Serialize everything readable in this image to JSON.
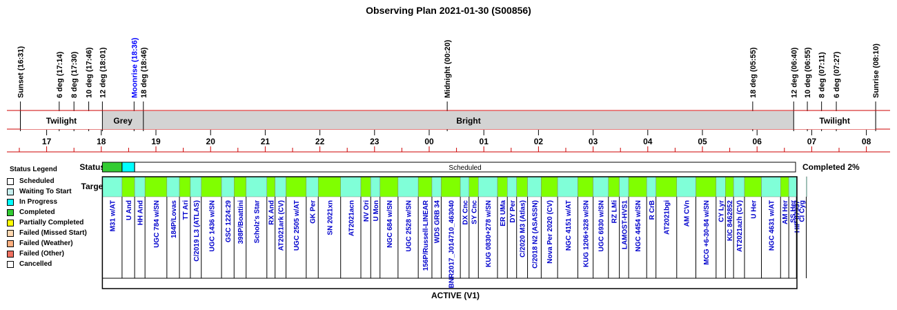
{
  "chart_data": {
    "type": "observing-plan",
    "title": "Observing Plan 2021-01-30 (S00856)",
    "axis_hours": [
      "17",
      "18",
      "19",
      "20",
      "21",
      "22",
      "23",
      "00",
      "01",
      "02",
      "03",
      "04",
      "05",
      "06",
      "07",
      "08"
    ],
    "time_markers": [
      {
        "label": "Sunset (16:31)",
        "t": -7.48,
        "color": "#000000"
      },
      {
        "label": "6 deg (17:14)",
        "t": -6.77,
        "color": "#000000"
      },
      {
        "label": "8 deg (17:30)",
        "t": -6.5,
        "color": "#000000"
      },
      {
        "label": "10 deg (17:46)",
        "t": -6.23,
        "color": "#000000"
      },
      {
        "label": "12 deg (18:01)",
        "t": -5.98,
        "color": "#000000"
      },
      {
        "label": "Moonrise (18:36)",
        "t": -5.4,
        "color": "#0000ff"
      },
      {
        "label": "18 deg (18:46)",
        "t": -5.23,
        "color": "#000000"
      },
      {
        "label": "Midnight (00:20)",
        "t": 0.33,
        "color": "#000000"
      },
      {
        "label": "18 deg (05:55)",
        "t": 5.92,
        "color": "#000000"
      },
      {
        "label": "12 deg (06:40)",
        "t": 6.67,
        "color": "#000000"
      },
      {
        "label": "10 deg (06:55)",
        "t": 6.92,
        "color": "#000000"
      },
      {
        "label": "8 deg (07:11)",
        "t": 7.18,
        "color": "#000000"
      },
      {
        "label": "6 deg (07:27)",
        "t": 7.45,
        "color": "#000000"
      },
      {
        "label": "Sunrise (08:10)",
        "t": 8.17,
        "color": "#000000"
      }
    ],
    "bands": [
      {
        "label": "Twilight",
        "from": -7.48,
        "to": -5.98,
        "fill": "#ffffff"
      },
      {
        "label": "Grey",
        "from": -5.98,
        "to": -5.23,
        "fill": "#d3d3d3"
      },
      {
        "label": "Bright",
        "from": -5.23,
        "to": 6.67,
        "fill": "#d3d3d3"
      },
      {
        "label": "Twilight",
        "from": 6.67,
        "to": 8.17,
        "fill": "#ffffff"
      }
    ],
    "status_label": "Status",
    "targets_label": "Targets",
    "status_segments": [
      {
        "status": "Completed",
        "from": -5.98,
        "to": -5.62
      },
      {
        "status": "In Progress",
        "from": -5.62,
        "to": -5.39
      },
      {
        "status": "Scheduled",
        "from": -5.39,
        "to": 6.67,
        "text": "Scheduled"
      }
    ],
    "completed_text": "Completed 2%",
    "footer": "ACTIVE (V1)",
    "targets": [
      {
        "name": "M31 w/AT",
        "from": -5.98,
        "to": -5.62,
        "status": "Completed"
      },
      {
        "name": "U And",
        "from": -5.62,
        "to": -5.39,
        "status": "In Progress"
      },
      {
        "name": "HH And",
        "from": -5.39,
        "to": -5.2,
        "status": "Scheduled"
      },
      {
        "name": "UGC 784 w/SN",
        "from": -5.2,
        "to": -4.8,
        "status": "Scheduled"
      },
      {
        "name": "184P/Lovas",
        "from": -4.8,
        "to": -4.57,
        "status": "Scheduled"
      },
      {
        "name": "TT Ari",
        "from": -4.57,
        "to": -4.37,
        "status": "Scheduled"
      },
      {
        "name": "C/2019 L3 (ATLAS)",
        "from": -4.37,
        "to": -4.17,
        "status": "Scheduled"
      },
      {
        "name": "UGC 1436 w/SN",
        "from": -4.17,
        "to": -3.8,
        "status": "Scheduled"
      },
      {
        "name": "GSC 1224:29",
        "from": -3.8,
        "to": -3.57,
        "status": "Scheduled"
      },
      {
        "name": "398P/Boattini",
        "from": -3.57,
        "to": -3.35,
        "status": "Scheduled"
      },
      {
        "name": "Scholz's Star",
        "from": -3.35,
        "to": -2.97,
        "status": "Scheduled"
      },
      {
        "name": "RX And",
        "from": -2.97,
        "to": -2.82,
        "status": "Scheduled"
      },
      {
        "name": "AT2021ark (CV)",
        "from": -2.82,
        "to": -2.62,
        "status": "Scheduled"
      },
      {
        "name": "UGC 2505 w/AT",
        "from": -2.62,
        "to": -2.25,
        "status": "Scheduled"
      },
      {
        "name": "GK Per",
        "from": -2.25,
        "to": -2.03,
        "status": "Scheduled"
      },
      {
        "name": "SN 2021xn",
        "from": -2.03,
        "to": -1.62,
        "status": "Scheduled"
      },
      {
        "name": "AT2021acn",
        "from": -1.62,
        "to": -1.25,
        "status": "Scheduled"
      },
      {
        "name": "NV Ori",
        "from": -1.25,
        "to": -1.07,
        "status": "Scheduled"
      },
      {
        "name": "U Mon",
        "from": -1.07,
        "to": -0.9,
        "status": "Scheduled"
      },
      {
        "name": "NGC 684 w/SN",
        "from": -0.9,
        "to": -0.57,
        "status": "Scheduled"
      },
      {
        "name": "UGC 2528 w/SN",
        "from": -0.57,
        "to": -0.2,
        "status": "Scheduled"
      },
      {
        "name": "156P/Russell-LINEAR",
        "from": -0.2,
        "to": 0.05,
        "status": "Scheduled"
      },
      {
        "name": "WDS GRB 34",
        "from": 0.05,
        "to": 0.22,
        "status": "Scheduled"
      },
      {
        "name": "BNR2017_J014710_463040",
        "from": 0.22,
        "to": 0.57,
        "status": "Scheduled"
      },
      {
        "name": "DX Cnc",
        "from": 0.57,
        "to": 0.73,
        "status": "Scheduled"
      },
      {
        "name": "SY Cnc",
        "from": 0.73,
        "to": 0.9,
        "status": "Scheduled"
      },
      {
        "name": "KUG 0830+278 w/SN",
        "from": 0.9,
        "to": 1.25,
        "status": "Scheduled"
      },
      {
        "name": "ER UMa",
        "from": 1.25,
        "to": 1.43,
        "status": "Scheduled"
      },
      {
        "name": "DY Per",
        "from": 1.43,
        "to": 1.6,
        "status": "Scheduled"
      },
      {
        "name": "C/2020 M3 (Atlas)",
        "from": 1.6,
        "to": 1.8,
        "status": "Scheduled"
      },
      {
        "name": "C/2018 N2 (ASASSN)",
        "from": 1.8,
        "to": 2.05,
        "status": "Scheduled"
      },
      {
        "name": "Nova Per 2020 (CV)",
        "from": 2.05,
        "to": 2.35,
        "status": "Scheduled"
      },
      {
        "name": "NGC 4151 w/AT",
        "from": 2.35,
        "to": 2.72,
        "status": "Scheduled"
      },
      {
        "name": "KUG 1206+328 w/SN",
        "from": 2.72,
        "to": 3.0,
        "status": "Scheduled"
      },
      {
        "name": "UGC 6930 w/SN",
        "from": 3.0,
        "to": 3.28,
        "status": "Scheduled"
      },
      {
        "name": "RZ LMi",
        "from": 3.28,
        "to": 3.48,
        "status": "Scheduled"
      },
      {
        "name": "LAMOST-HVS1",
        "from": 3.48,
        "to": 3.65,
        "status": "Scheduled"
      },
      {
        "name": "NGC 4454 w/SN",
        "from": 3.65,
        "to": 3.98,
        "status": "Scheduled"
      },
      {
        "name": "R CrB",
        "from": 3.98,
        "to": 4.15,
        "status": "Scheduled"
      },
      {
        "name": "AT2021bgi",
        "from": 4.15,
        "to": 4.53,
        "status": "Scheduled"
      },
      {
        "name": "AM CVn",
        "from": 4.53,
        "to": 4.88,
        "status": "Scheduled"
      },
      {
        "name": "MCG +6-30-84 w/SN",
        "from": 4.88,
        "to": 5.25,
        "status": "Scheduled"
      },
      {
        "name": "CY Lyr",
        "from": 5.25,
        "to": 5.42,
        "status": "Scheduled"
      },
      {
        "name": "KIC 8462852",
        "from": 5.42,
        "to": 5.57,
        "status": "Scheduled"
      },
      {
        "name": "AT2021azh (CV)",
        "from": 5.57,
        "to": 5.77,
        "status": "Scheduled"
      },
      {
        "name": "U Her",
        "from": 5.77,
        "to": 6.08,
        "status": "Scheduled"
      },
      {
        "name": "NGC 4631 w/AT",
        "from": 6.08,
        "to": 6.43,
        "status": "Scheduled"
      },
      {
        "name": "AM Her",
        "from": 6.43,
        "to": 6.58,
        "status": "Scheduled"
      },
      {
        "name": "SS Her",
        "from": 6.58,
        "to": 6.72,
        "status": "Scheduled"
      },
      {
        "name": "HIP 87937",
        "from": 6.72,
        "to": 6.9,
        "status": "Scheduled"
      },
      {
        "name": "CI Cyg",
        "from": 6.9,
        "to": 7.02,
        "status": "Scheduled"
      }
    ]
  },
  "legend": {
    "title": "Status Legend",
    "items": [
      {
        "label": "Scheduled",
        "color": "#ffffff"
      },
      {
        "label": "Waiting To Start",
        "color": "#c8f0f0"
      },
      {
        "label": "In Progress",
        "color": "#00ffff"
      },
      {
        "label": "Completed",
        "color": "#33cc33"
      },
      {
        "label": "Partially Completed",
        "color": "#ffff00"
      },
      {
        "label": "Failed (Missed Start)",
        "color": "#ffd8b0"
      },
      {
        "label": "Failed (Weather)",
        "color": "#ffb080"
      },
      {
        "label": "Failed (Other)",
        "color": "#f07060"
      },
      {
        "label": "Cancelled",
        "color": "#ffffff"
      }
    ]
  },
  "colors": {
    "completed": "#33cc33",
    "in_progress": "#00ffff",
    "target_a": "#80ffd8",
    "target_b": "#80ff00",
    "rule": "#cc0000"
  }
}
